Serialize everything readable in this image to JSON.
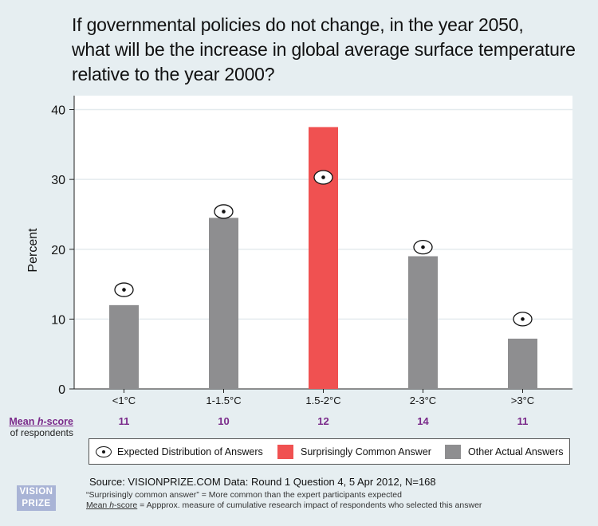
{
  "title_lines": [
    "If governmental policies do not change, in the year 2050,",
    "what will be the increase in global average surface temperature",
    "relative to the year 2000?"
  ],
  "chart_data": {
    "type": "bar",
    "ylabel": "Percent",
    "ylim": [
      0,
      42
    ],
    "yticks": [
      0,
      10,
      20,
      30,
      40
    ],
    "categories": [
      "<1°C",
      "1-1.5°C",
      "1.5-2°C",
      "2-3°C",
      ">3°C"
    ],
    "values": [
      12,
      24.5,
      37.5,
      19,
      7.2
    ],
    "expected": [
      14.2,
      25.4,
      30.3,
      20.3,
      10
    ],
    "highlight_index": 2,
    "hscores": [
      "11",
      "10",
      "12",
      "14",
      "11"
    ],
    "grid": true,
    "colors": {
      "bar": "#8e8e90",
      "highlight": "#f05151",
      "hscore": "#7a2a8a"
    }
  },
  "hscore_label": {
    "line1_prefix": "Mean ",
    "line1_h": "h",
    "line1_suffix": "-score",
    "line2": "of respondents"
  },
  "legend": {
    "expected": "Expected Distribution of Answers",
    "surprising": "Surprisingly Common Answer",
    "other": "Other Actual Answers"
  },
  "source": "Source: VISIONPRIZE.COM  Data: Round 1 Question 4,  5 Apr 2012, N=168",
  "notes": {
    "line1": "“Surprisingly common answer” = More common than the expert participants expected",
    "line2_prefix": "Mean ",
    "line2_h": "h",
    "line2_mid": "-score",
    "line2_suffix": " = Appprox. measure of cumulative research impact of respondents who selected this answer"
  },
  "logo": {
    "line1": "VISION",
    "line2": "PRIZE"
  }
}
